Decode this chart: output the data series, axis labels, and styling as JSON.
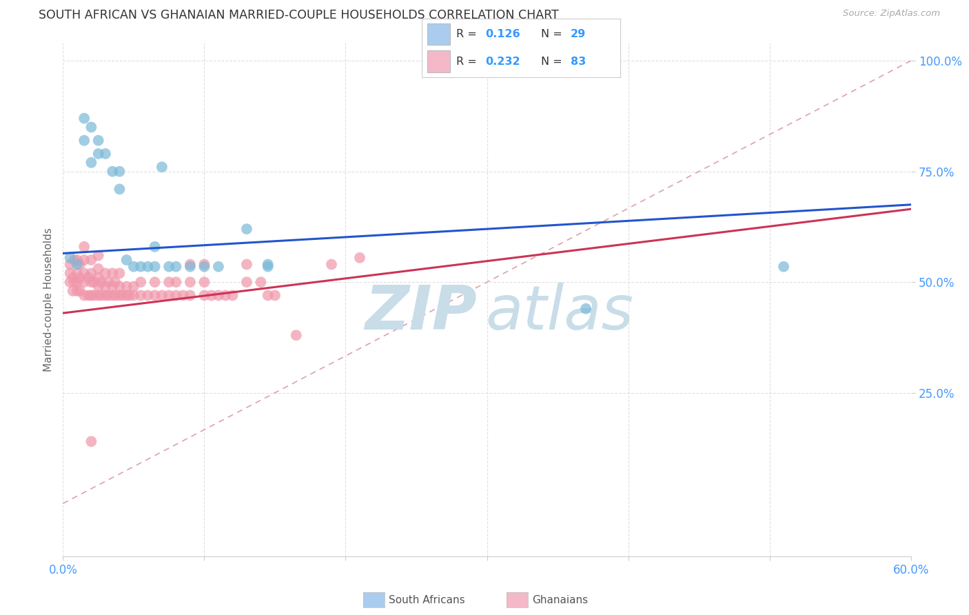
{
  "title": "SOUTH AFRICAN VS GHANAIAN MARRIED-COUPLE HOUSEHOLDS CORRELATION CHART",
  "source": "Source: ZipAtlas.com",
  "ylabel": "Married-couple Households",
  "xmin": 0.0,
  "xmax": 0.6,
  "ymin": 0.0,
  "ymax": 1.0,
  "scatter_blue_color": "#7ab8d8",
  "scatter_pink_color": "#f096aa",
  "trend_blue_color": "#2255cc",
  "trend_pink_color": "#cc3355",
  "ref_line_color": "#e0a0a8",
  "legend_color1": "#aaccee",
  "legend_color2": "#f4b8c8",
  "watermark_zip_color": "#c8dde8",
  "watermark_atlas_color": "#c8dde8",
  "R1": 0.126,
  "N1": 29,
  "R2": 0.232,
  "N2": 83,
  "blue_x": [
    0.005,
    0.01,
    0.015,
    0.015,
    0.02,
    0.02,
    0.025,
    0.025,
    0.03,
    0.035,
    0.04,
    0.04,
    0.045,
    0.05,
    0.055,
    0.06,
    0.065,
    0.065,
    0.07,
    0.075,
    0.08,
    0.09,
    0.1,
    0.11,
    0.13,
    0.145,
    0.145,
    0.37,
    0.51
  ],
  "blue_y": [
    0.555,
    0.54,
    0.82,
    0.87,
    0.77,
    0.85,
    0.82,
    0.79,
    0.79,
    0.75,
    0.75,
    0.71,
    0.55,
    0.535,
    0.535,
    0.535,
    0.535,
    0.58,
    0.76,
    0.535,
    0.535,
    0.535,
    0.535,
    0.535,
    0.62,
    0.535,
    0.54,
    0.44,
    0.535
  ],
  "pink_x": [
    0.005,
    0.005,
    0.005,
    0.007,
    0.007,
    0.008,
    0.008,
    0.01,
    0.01,
    0.01,
    0.01,
    0.012,
    0.012,
    0.012,
    0.015,
    0.015,
    0.015,
    0.015,
    0.015,
    0.018,
    0.018,
    0.02,
    0.02,
    0.02,
    0.02,
    0.022,
    0.022,
    0.025,
    0.025,
    0.025,
    0.025,
    0.025,
    0.027,
    0.027,
    0.03,
    0.03,
    0.03,
    0.032,
    0.032,
    0.035,
    0.035,
    0.035,
    0.037,
    0.037,
    0.04,
    0.04,
    0.04,
    0.042,
    0.045,
    0.045,
    0.047,
    0.05,
    0.05,
    0.055,
    0.055,
    0.06,
    0.065,
    0.065,
    0.07,
    0.075,
    0.075,
    0.08,
    0.08,
    0.085,
    0.09,
    0.09,
    0.09,
    0.1,
    0.1,
    0.1,
    0.105,
    0.11,
    0.115,
    0.12,
    0.13,
    0.13,
    0.14,
    0.145,
    0.15,
    0.165,
    0.19,
    0.21,
    0.02
  ],
  "pink_y": [
    0.5,
    0.52,
    0.54,
    0.48,
    0.51,
    0.5,
    0.55,
    0.48,
    0.5,
    0.52,
    0.55,
    0.48,
    0.51,
    0.54,
    0.47,
    0.5,
    0.52,
    0.55,
    0.58,
    0.47,
    0.51,
    0.47,
    0.5,
    0.52,
    0.55,
    0.47,
    0.5,
    0.47,
    0.49,
    0.51,
    0.53,
    0.56,
    0.47,
    0.5,
    0.47,
    0.49,
    0.52,
    0.47,
    0.5,
    0.47,
    0.49,
    0.52,
    0.47,
    0.5,
    0.47,
    0.49,
    0.52,
    0.47,
    0.47,
    0.49,
    0.47,
    0.47,
    0.49,
    0.47,
    0.5,
    0.47,
    0.47,
    0.5,
    0.47,
    0.47,
    0.5,
    0.47,
    0.5,
    0.47,
    0.47,
    0.5,
    0.54,
    0.47,
    0.5,
    0.54,
    0.47,
    0.47,
    0.47,
    0.47,
    0.5,
    0.54,
    0.5,
    0.47,
    0.47,
    0.38,
    0.54,
    0.555,
    0.14
  ]
}
